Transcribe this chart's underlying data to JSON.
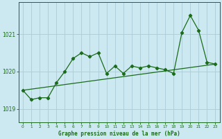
{
  "title": "Graphe pression niveau de la mer (hPa)",
  "bg_color": "#cce8f0",
  "plot_bg_color": "#cce8f0",
  "line_color": "#1a6b1a",
  "grid_color": "#aaccd8",
  "xlim": [
    -0.5,
    23.5
  ],
  "ylim": [
    1018.65,
    1021.85
  ],
  "yticks": [
    1019,
    1020,
    1021
  ],
  "xticks": [
    0,
    1,
    2,
    3,
    4,
    5,
    6,
    7,
    8,
    9,
    10,
    11,
    12,
    13,
    14,
    15,
    16,
    17,
    18,
    19,
    20,
    21,
    22,
    23
  ],
  "series1_x": [
    0,
    1,
    2,
    3,
    4,
    5,
    6,
    7,
    8,
    9,
    10,
    11,
    12,
    13,
    14,
    15,
    16,
    17,
    18,
    19,
    20,
    21,
    22,
    23
  ],
  "series1_y": [
    1019.5,
    1019.25,
    1019.3,
    1019.3,
    1019.7,
    1020.0,
    1020.35,
    1020.5,
    1020.4,
    1020.5,
    1019.95,
    1020.15,
    1019.95,
    1020.15,
    1020.1,
    1020.15,
    1020.1,
    1020.05,
    1019.95,
    1021.05,
    1021.5,
    1021.1,
    1020.25,
    1020.2
  ],
  "series2_x": [
    0,
    23
  ],
  "series2_y": [
    1019.5,
    1020.2
  ]
}
